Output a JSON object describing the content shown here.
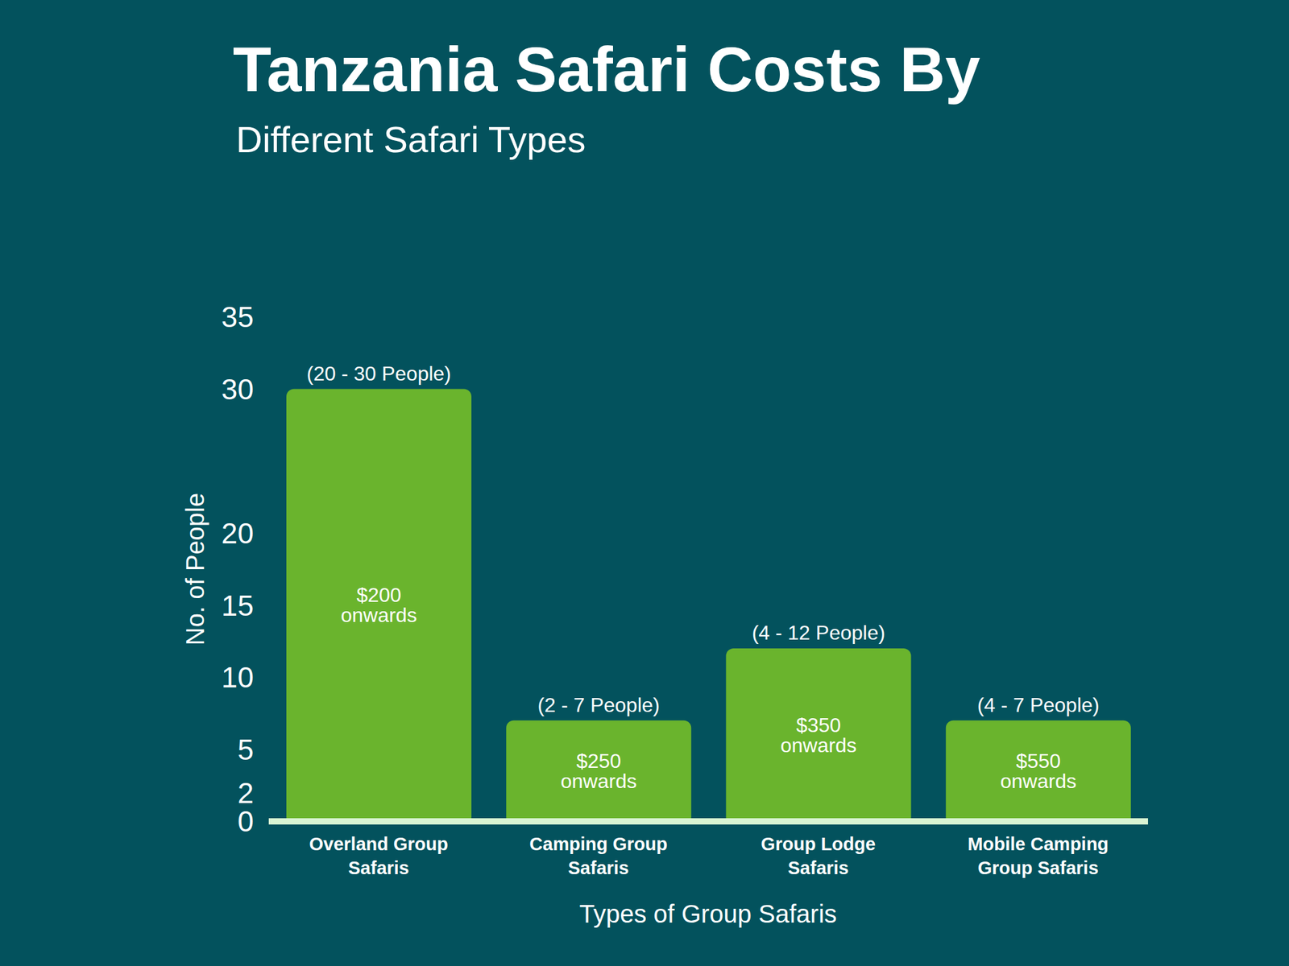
{
  "chart_data": {
    "type": "bar",
    "title": "Tanzania Safari Costs By",
    "subtitle": "Different Safari Types",
    "x_label": "Types of Group Safaris",
    "y_label": "No. of People",
    "categories": [
      "Overland Group Safaris",
      "Camping Group Safaris",
      "Group Lodge Safaris",
      "Mobile Camping Group Safaris"
    ],
    "values": [
      30,
      7,
      12,
      7
    ],
    "value_labels": [
      "(20 - 30 People)",
      "(2 - 7 People)",
      "(4 - 12 People)",
      "(4 - 7 People)"
    ],
    "price_labels": [
      "$200 onwards",
      "$250 onwards",
      "$350 onwards",
      "$550 onwards"
    ],
    "color": "#6ab42d",
    "ylim": [
      0,
      35
    ],
    "yticks": [
      0,
      2,
      5,
      10,
      15,
      20,
      30,
      35
    ],
    "grid": false,
    "data_labels": true
  }
}
